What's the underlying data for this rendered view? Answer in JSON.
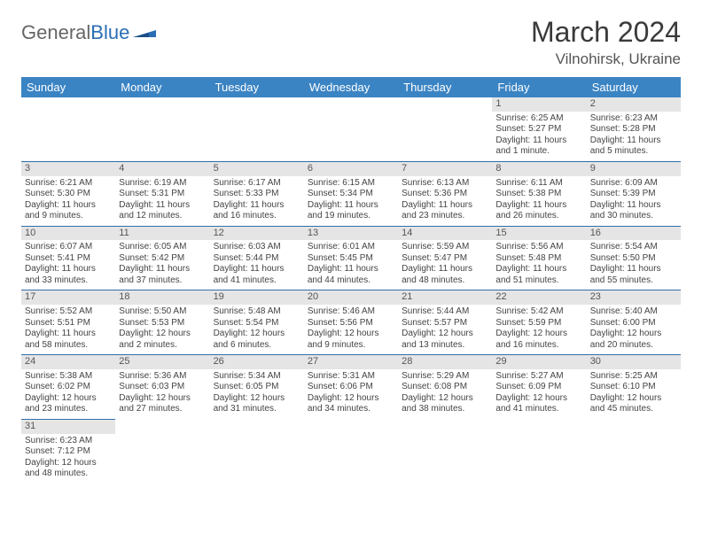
{
  "brand": {
    "left": "General",
    "right": "Blue"
  },
  "title": "March 2024",
  "location": "Vilnohirsk, Ukraine",
  "colors": {
    "header_bg": "#3b84c4",
    "row_border": "#2f6fa8",
    "daynum_bg": "#e5e5e5"
  },
  "day_headers": [
    "Sunday",
    "Monday",
    "Tuesday",
    "Wednesday",
    "Thursday",
    "Friday",
    "Saturday"
  ],
  "weeks": [
    [
      {
        "empty": true
      },
      {
        "empty": true
      },
      {
        "empty": true
      },
      {
        "empty": true
      },
      {
        "empty": true
      },
      {
        "n": "1",
        "sr": "Sunrise: 6:25 AM",
        "ss": "Sunset: 5:27 PM",
        "d1": "Daylight: 11 hours",
        "d2": "and 1 minute."
      },
      {
        "n": "2",
        "sr": "Sunrise: 6:23 AM",
        "ss": "Sunset: 5:28 PM",
        "d1": "Daylight: 11 hours",
        "d2": "and 5 minutes."
      }
    ],
    [
      {
        "n": "3",
        "sr": "Sunrise: 6:21 AM",
        "ss": "Sunset: 5:30 PM",
        "d1": "Daylight: 11 hours",
        "d2": "and 9 minutes."
      },
      {
        "n": "4",
        "sr": "Sunrise: 6:19 AM",
        "ss": "Sunset: 5:31 PM",
        "d1": "Daylight: 11 hours",
        "d2": "and 12 minutes."
      },
      {
        "n": "5",
        "sr": "Sunrise: 6:17 AM",
        "ss": "Sunset: 5:33 PM",
        "d1": "Daylight: 11 hours",
        "d2": "and 16 minutes."
      },
      {
        "n": "6",
        "sr": "Sunrise: 6:15 AM",
        "ss": "Sunset: 5:34 PM",
        "d1": "Daylight: 11 hours",
        "d2": "and 19 minutes."
      },
      {
        "n": "7",
        "sr": "Sunrise: 6:13 AM",
        "ss": "Sunset: 5:36 PM",
        "d1": "Daylight: 11 hours",
        "d2": "and 23 minutes."
      },
      {
        "n": "8",
        "sr": "Sunrise: 6:11 AM",
        "ss": "Sunset: 5:38 PM",
        "d1": "Daylight: 11 hours",
        "d2": "and 26 minutes."
      },
      {
        "n": "9",
        "sr": "Sunrise: 6:09 AM",
        "ss": "Sunset: 5:39 PM",
        "d1": "Daylight: 11 hours",
        "d2": "and 30 minutes."
      }
    ],
    [
      {
        "n": "10",
        "sr": "Sunrise: 6:07 AM",
        "ss": "Sunset: 5:41 PM",
        "d1": "Daylight: 11 hours",
        "d2": "and 33 minutes."
      },
      {
        "n": "11",
        "sr": "Sunrise: 6:05 AM",
        "ss": "Sunset: 5:42 PM",
        "d1": "Daylight: 11 hours",
        "d2": "and 37 minutes."
      },
      {
        "n": "12",
        "sr": "Sunrise: 6:03 AM",
        "ss": "Sunset: 5:44 PM",
        "d1": "Daylight: 11 hours",
        "d2": "and 41 minutes."
      },
      {
        "n": "13",
        "sr": "Sunrise: 6:01 AM",
        "ss": "Sunset: 5:45 PM",
        "d1": "Daylight: 11 hours",
        "d2": "and 44 minutes."
      },
      {
        "n": "14",
        "sr": "Sunrise: 5:59 AM",
        "ss": "Sunset: 5:47 PM",
        "d1": "Daylight: 11 hours",
        "d2": "and 48 minutes."
      },
      {
        "n": "15",
        "sr": "Sunrise: 5:56 AM",
        "ss": "Sunset: 5:48 PM",
        "d1": "Daylight: 11 hours",
        "d2": "and 51 minutes."
      },
      {
        "n": "16",
        "sr": "Sunrise: 5:54 AM",
        "ss": "Sunset: 5:50 PM",
        "d1": "Daylight: 11 hours",
        "d2": "and 55 minutes."
      }
    ],
    [
      {
        "n": "17",
        "sr": "Sunrise: 5:52 AM",
        "ss": "Sunset: 5:51 PM",
        "d1": "Daylight: 11 hours",
        "d2": "and 58 minutes."
      },
      {
        "n": "18",
        "sr": "Sunrise: 5:50 AM",
        "ss": "Sunset: 5:53 PM",
        "d1": "Daylight: 12 hours",
        "d2": "and 2 minutes."
      },
      {
        "n": "19",
        "sr": "Sunrise: 5:48 AM",
        "ss": "Sunset: 5:54 PM",
        "d1": "Daylight: 12 hours",
        "d2": "and 6 minutes."
      },
      {
        "n": "20",
        "sr": "Sunrise: 5:46 AM",
        "ss": "Sunset: 5:56 PM",
        "d1": "Daylight: 12 hours",
        "d2": "and 9 minutes."
      },
      {
        "n": "21",
        "sr": "Sunrise: 5:44 AM",
        "ss": "Sunset: 5:57 PM",
        "d1": "Daylight: 12 hours",
        "d2": "and 13 minutes."
      },
      {
        "n": "22",
        "sr": "Sunrise: 5:42 AM",
        "ss": "Sunset: 5:59 PM",
        "d1": "Daylight: 12 hours",
        "d2": "and 16 minutes."
      },
      {
        "n": "23",
        "sr": "Sunrise: 5:40 AM",
        "ss": "Sunset: 6:00 PM",
        "d1": "Daylight: 12 hours",
        "d2": "and 20 minutes."
      }
    ],
    [
      {
        "n": "24",
        "sr": "Sunrise: 5:38 AM",
        "ss": "Sunset: 6:02 PM",
        "d1": "Daylight: 12 hours",
        "d2": "and 23 minutes."
      },
      {
        "n": "25",
        "sr": "Sunrise: 5:36 AM",
        "ss": "Sunset: 6:03 PM",
        "d1": "Daylight: 12 hours",
        "d2": "and 27 minutes."
      },
      {
        "n": "26",
        "sr": "Sunrise: 5:34 AM",
        "ss": "Sunset: 6:05 PM",
        "d1": "Daylight: 12 hours",
        "d2": "and 31 minutes."
      },
      {
        "n": "27",
        "sr": "Sunrise: 5:31 AM",
        "ss": "Sunset: 6:06 PM",
        "d1": "Daylight: 12 hours",
        "d2": "and 34 minutes."
      },
      {
        "n": "28",
        "sr": "Sunrise: 5:29 AM",
        "ss": "Sunset: 6:08 PM",
        "d1": "Daylight: 12 hours",
        "d2": "and 38 minutes."
      },
      {
        "n": "29",
        "sr": "Sunrise: 5:27 AM",
        "ss": "Sunset: 6:09 PM",
        "d1": "Daylight: 12 hours",
        "d2": "and 41 minutes."
      },
      {
        "n": "30",
        "sr": "Sunrise: 5:25 AM",
        "ss": "Sunset: 6:10 PM",
        "d1": "Daylight: 12 hours",
        "d2": "and 45 minutes."
      }
    ],
    [
      {
        "n": "31",
        "sr": "Sunrise: 6:23 AM",
        "ss": "Sunset: 7:12 PM",
        "d1": "Daylight: 12 hours",
        "d2": "and 48 minutes."
      },
      {
        "empty": true
      },
      {
        "empty": true
      },
      {
        "empty": true
      },
      {
        "empty": true
      },
      {
        "empty": true
      },
      {
        "empty": true
      }
    ]
  ]
}
